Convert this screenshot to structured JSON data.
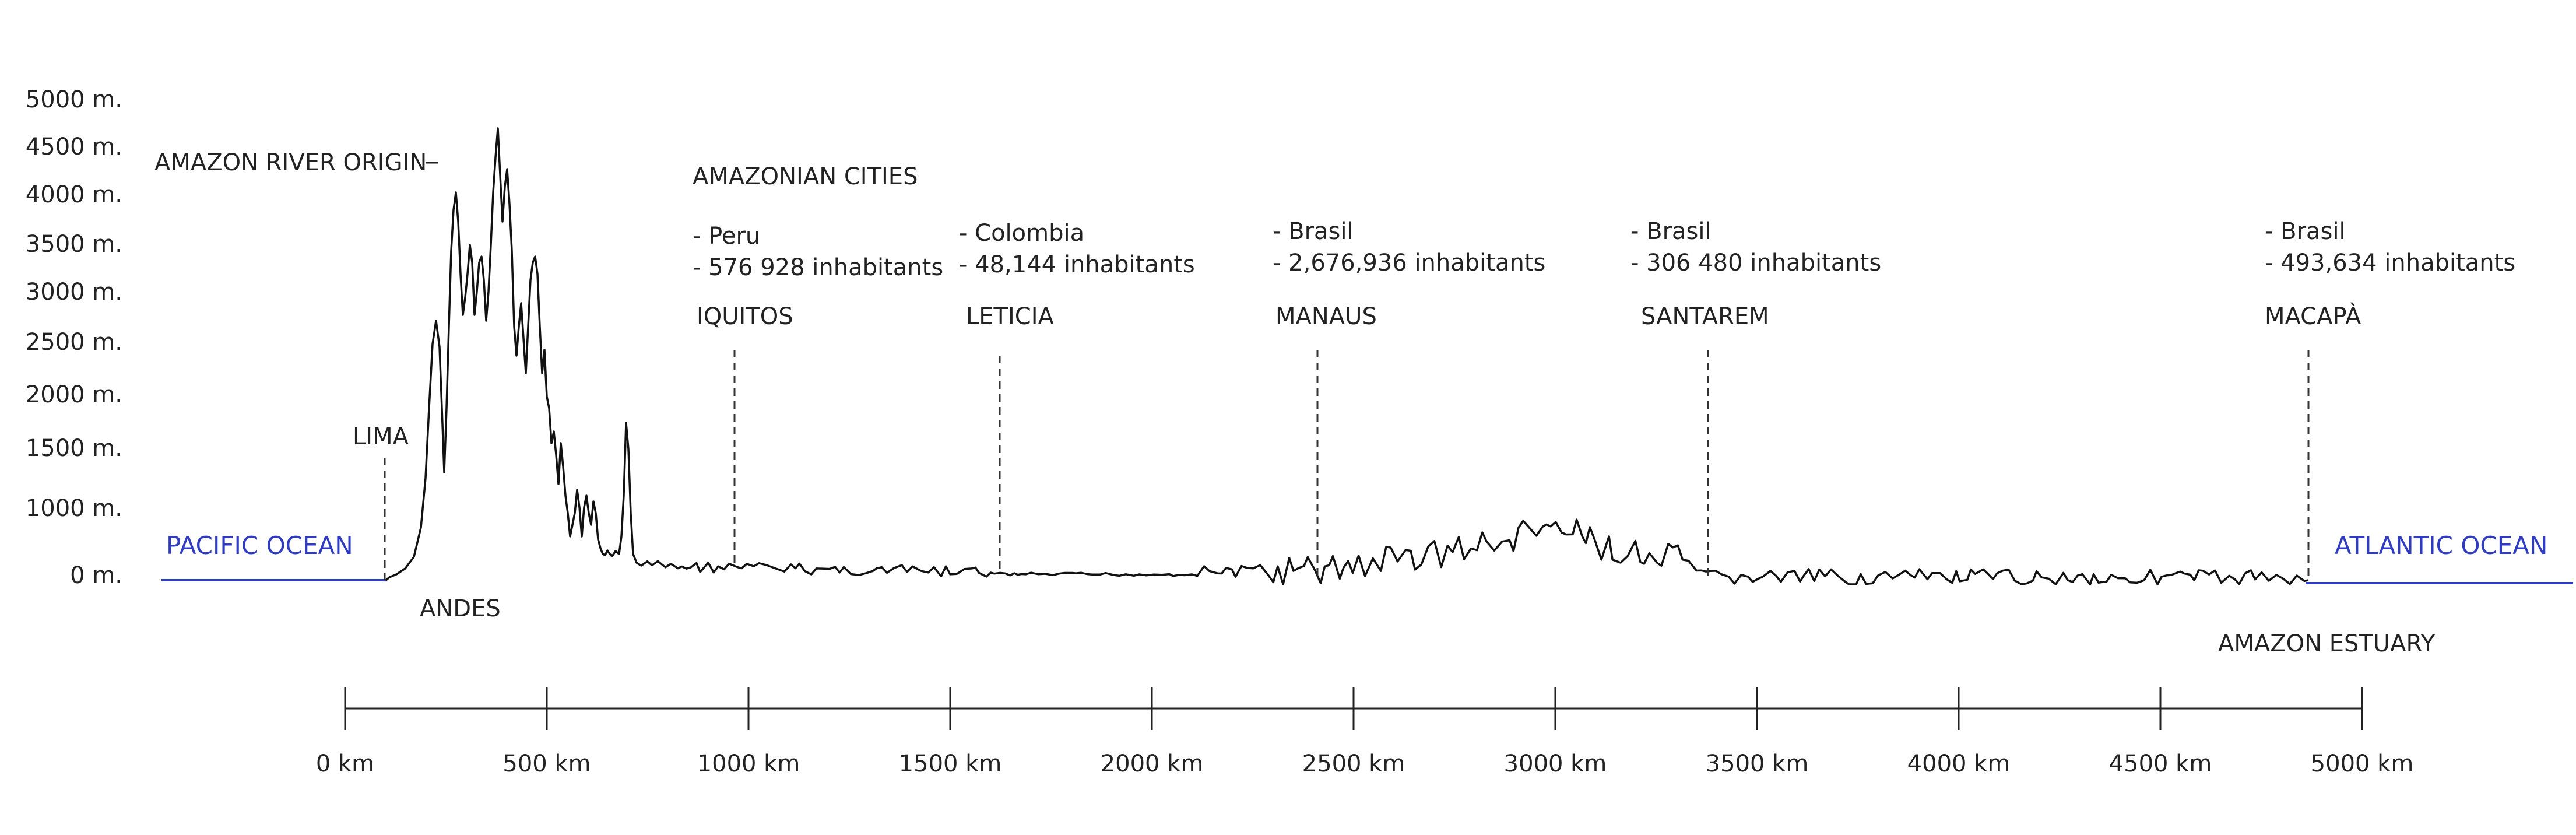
{
  "elevation_axis": {
    "ticks": [
      "5000 m.",
      "4500 m.",
      "4000 m.",
      "3500 m.",
      "3000 m.",
      "2500 m.",
      "2000 m.",
      "1500 m.",
      "1000 m.",
      "0 m."
    ]
  },
  "distance_axis": {
    "ticks": [
      "0 km",
      "500 km",
      "1000 km",
      "1500 km",
      "2000 km",
      "2500 km",
      "3000 km",
      "3500 km",
      "4000 km",
      "4500 km",
      "5000 km"
    ]
  },
  "landmarks": {
    "pacific": "PACIFIC OCEAN",
    "atlantic": "ATLANTIC OCEAN",
    "lima": "LIMA",
    "andes": "ANDES",
    "origin": "AMAZON RIVER ORIGIN",
    "estuary": "AMAZON ESTUARY",
    "cities_heading": "AMAZONIAN CITIES"
  },
  "cities": [
    {
      "name": "IQUITOS",
      "country": "- Peru",
      "population": "- 576 928 inhabitants"
    },
    {
      "name": "LETICIA",
      "country": "- Colombia",
      "population": "- 48,144 inhabitants"
    },
    {
      "name": "MANAUS",
      "country": "- Brasil",
      "population": "- 2,676,936 inhabitants"
    },
    {
      "name": "SANTAREM",
      "country": "- Brasil",
      "population": "- 306 480  inhabitants"
    },
    {
      "name": "MACAPÀ",
      "country": "- Brasil",
      "population": "- 493,634  inhabitants"
    }
  ],
  "colors": {
    "ocean": "#2f3cc0",
    "profile": "#111111",
    "text": "#222222"
  }
}
